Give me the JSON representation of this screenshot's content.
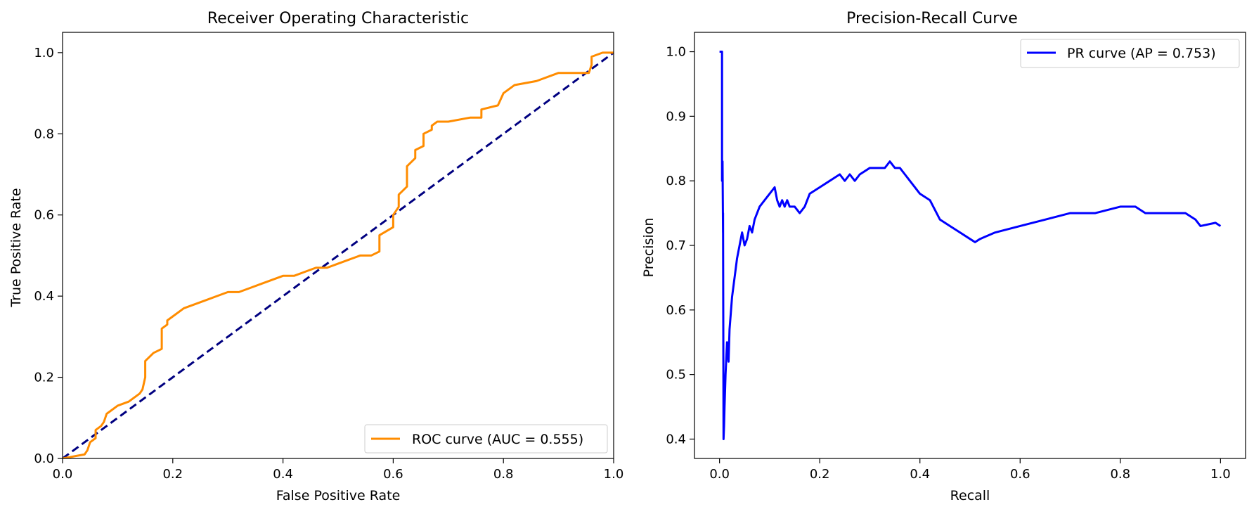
{
  "chart_data": [
    {
      "type": "line",
      "title": "Receiver Operating Characteristic",
      "xlabel": "False Positive Rate",
      "ylabel": "True Positive Rate",
      "xlim": [
        0.0,
        1.0
      ],
      "ylim": [
        0.0,
        1.05
      ],
      "xticks": [
        0.0,
        0.2,
        0.4,
        0.6,
        0.8,
        1.0
      ],
      "xtick_labels": [
        "0.0",
        "0.2",
        "0.4",
        "0.6",
        "0.8",
        "1.0"
      ],
      "yticks": [
        0.0,
        0.2,
        0.4,
        0.6,
        0.8,
        1.0
      ],
      "ytick_labels": [
        "0.0",
        "0.2",
        "0.4",
        "0.6",
        "0.8",
        "1.0"
      ],
      "legend_placement": "lower-right",
      "series": [
        {
          "name": "ROC curve (AUC = 0.555)",
          "color": "#ff8c00",
          "style": "solid",
          "in_legend": true,
          "x": [
            0.0,
            0.04,
            0.045,
            0.05,
            0.06,
            0.06,
            0.07,
            0.075,
            0.08,
            0.08,
            0.09,
            0.1,
            0.12,
            0.14,
            0.145,
            0.15,
            0.15,
            0.165,
            0.18,
            0.18,
            0.19,
            0.19,
            0.2,
            0.22,
            0.24,
            0.26,
            0.28,
            0.3,
            0.32,
            0.34,
            0.36,
            0.38,
            0.4,
            0.42,
            0.44,
            0.46,
            0.48,
            0.5,
            0.52,
            0.54,
            0.56,
            0.575,
            0.575,
            0.6,
            0.6,
            0.61,
            0.61,
            0.625,
            0.625,
            0.64,
            0.64,
            0.655,
            0.655,
            0.67,
            0.67,
            0.68,
            0.7,
            0.74,
            0.76,
            0.76,
            0.79,
            0.8,
            0.82,
            0.86,
            0.9,
            0.93,
            0.955,
            0.96,
            0.96,
            0.98,
            1.0
          ],
          "y": [
            0.0,
            0.01,
            0.02,
            0.04,
            0.05,
            0.07,
            0.08,
            0.09,
            0.11,
            0.11,
            0.12,
            0.13,
            0.14,
            0.16,
            0.17,
            0.2,
            0.24,
            0.26,
            0.27,
            0.32,
            0.33,
            0.34,
            0.35,
            0.37,
            0.38,
            0.39,
            0.4,
            0.41,
            0.41,
            0.42,
            0.43,
            0.44,
            0.45,
            0.45,
            0.46,
            0.47,
            0.47,
            0.48,
            0.49,
            0.5,
            0.5,
            0.51,
            0.55,
            0.57,
            0.6,
            0.62,
            0.65,
            0.67,
            0.72,
            0.74,
            0.76,
            0.77,
            0.8,
            0.81,
            0.82,
            0.83,
            0.83,
            0.84,
            0.84,
            0.86,
            0.87,
            0.9,
            0.92,
            0.93,
            0.95,
            0.95,
            0.95,
            0.97,
            0.99,
            1.0,
            1.0
          ]
        },
        {
          "name": "chance",
          "color": "#000080",
          "style": "dashed",
          "in_legend": false,
          "x": [
            0.0,
            1.0
          ],
          "y": [
            0.0,
            1.0
          ]
        }
      ]
    },
    {
      "type": "line",
      "title": "Precision-Recall Curve",
      "xlabel": "Recall",
      "ylabel": "Precision",
      "xlim": [
        -0.05,
        1.05
      ],
      "ylim": [
        0.37,
        1.03
      ],
      "xticks": [
        0.0,
        0.2,
        0.4,
        0.6,
        0.8,
        1.0
      ],
      "xtick_labels": [
        "0.0",
        "0.2",
        "0.4",
        "0.6",
        "0.8",
        "1.0"
      ],
      "yticks": [
        0.4,
        0.5,
        0.6,
        0.7,
        0.8,
        0.9,
        1.0
      ],
      "ytick_labels": [
        "0.4",
        "0.5",
        "0.6",
        "0.7",
        "0.8",
        "0.9",
        "1.0"
      ],
      "legend_placement": "upper-right",
      "series": [
        {
          "name": "PR curve (AP = 0.753)",
          "color": "#0000ff",
          "style": "solid",
          "in_legend": true,
          "x": [
            0.0,
            0.005,
            0.005,
            0.006,
            0.007,
            0.007,
            0.008,
            0.009,
            0.01,
            0.012,
            0.015,
            0.018,
            0.02,
            0.025,
            0.03,
            0.035,
            0.04,
            0.045,
            0.05,
            0.055,
            0.06,
            0.065,
            0.07,
            0.08,
            0.09,
            0.1,
            0.11,
            0.115,
            0.12,
            0.125,
            0.13,
            0.135,
            0.14,
            0.15,
            0.16,
            0.17,
            0.18,
            0.2,
            0.22,
            0.24,
            0.25,
            0.26,
            0.27,
            0.28,
            0.3,
            0.32,
            0.33,
            0.34,
            0.35,
            0.36,
            0.37,
            0.38,
            0.4,
            0.42,
            0.44,
            0.46,
            0.48,
            0.5,
            0.51,
            0.52,
            0.55,
            0.6,
            0.65,
            0.7,
            0.75,
            0.8,
            0.83,
            0.85,
            0.9,
            0.93,
            0.95,
            0.96,
            0.99,
            1.0
          ],
          "y": [
            1.0,
            1.0,
            0.8,
            0.83,
            0.72,
            0.75,
            0.4,
            0.42,
            0.45,
            0.5,
            0.55,
            0.52,
            0.57,
            0.62,
            0.65,
            0.68,
            0.7,
            0.72,
            0.7,
            0.71,
            0.73,
            0.72,
            0.74,
            0.76,
            0.77,
            0.78,
            0.79,
            0.77,
            0.76,
            0.77,
            0.76,
            0.77,
            0.76,
            0.76,
            0.75,
            0.76,
            0.78,
            0.79,
            0.8,
            0.81,
            0.8,
            0.81,
            0.8,
            0.81,
            0.82,
            0.82,
            0.82,
            0.83,
            0.82,
            0.82,
            0.81,
            0.8,
            0.78,
            0.77,
            0.74,
            0.73,
            0.72,
            0.71,
            0.705,
            0.71,
            0.72,
            0.73,
            0.74,
            0.75,
            0.75,
            0.76,
            0.76,
            0.75,
            0.75,
            0.75,
            0.74,
            0.73,
            0.735,
            0.73
          ]
        }
      ]
    }
  ]
}
